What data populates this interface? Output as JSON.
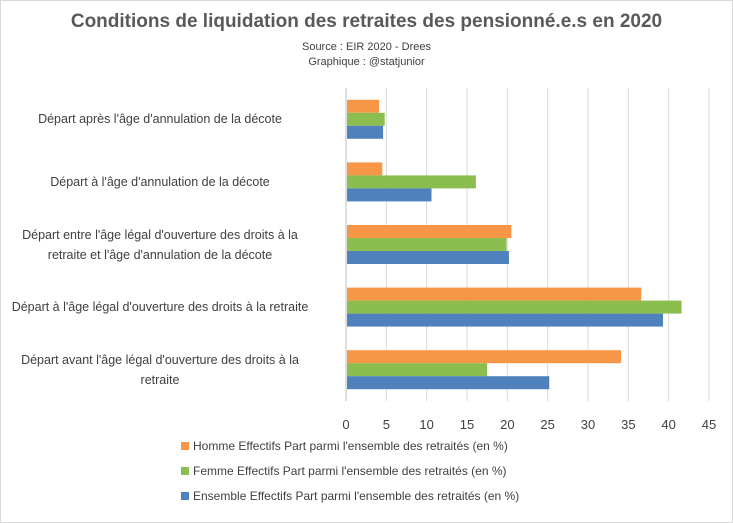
{
  "chart_data": {
    "type": "bar",
    "orientation": "horizontal",
    "title": "Conditions  de liquidation  des retraites des pensionné.e.s  en 2020",
    "subtitle_lines": [
      "Source : EIR 2020 - Drees",
      "Graphique : @statjunior"
    ],
    "categories": [
      "Départ après l'âge d'annulation de la décote",
      "Départ à l'âge d'annulation de la décote",
      "Départ entre l'âge légal d'ouverture des droits à la retraite et l'âge d'annulation de la décote",
      "Départ à l'âge légal d'ouverture des droits à la retraite",
      "Départ avant l'âge légal d'ouverture des droits à la retraite"
    ],
    "category_lines": [
      [
        "Départ après l'âge d'annulation de la décote"
      ],
      [
        "Départ à l'âge d'annulation de la décote"
      ],
      [
        "Départ entre l'âge légal d'ouverture des droits à la",
        "retraite et l'âge d'annulation de la décote"
      ],
      [
        "Départ à l'âge légal d'ouverture des droits à la retraite"
      ],
      [
        "Départ avant l'âge légal d'ouverture des droits à la",
        "retraite"
      ]
    ],
    "series": [
      {
        "name": "Homme Effectifs Part parmi l'ensemble des retraités (en %)",
        "color": "#f79646",
        "values": [
          4.1,
          4.5,
          20.5,
          36.6,
          34.1
        ]
      },
      {
        "name": "Femme Effectifs Part parmi l'ensemble des retraités (en %)",
        "color": "#8cbd4f",
        "values": [
          4.8,
          16.1,
          19.9,
          41.6,
          17.5
        ]
      },
      {
        "name": "Ensemble Effectifs Part parmi l'ensemble des retraités (en %)",
        "color": "#4f81bd",
        "values": [
          4.6,
          10.6,
          20.2,
          39.3,
          25.2
        ]
      }
    ],
    "xticks": [
      0,
      5,
      10,
      15,
      20,
      25,
      30,
      35,
      40,
      45
    ],
    "xlim": [
      0,
      45
    ],
    "grid": true,
    "legend_position": "bottom"
  }
}
